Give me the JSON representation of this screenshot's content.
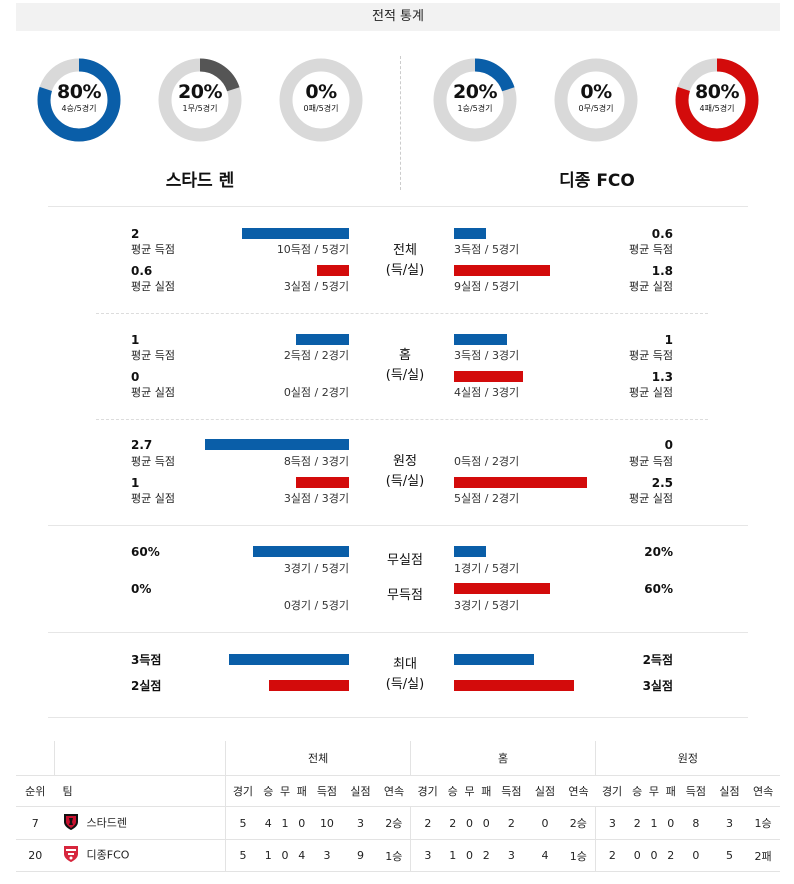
{
  "header": {
    "title": "전적 통계"
  },
  "teams": {
    "left": {
      "name": "스타드 렌",
      "donuts": [
        {
          "pct": "80%",
          "sub": "4승/5경기",
          "fraction": 0.8,
          "color": "#0a5ea8"
        },
        {
          "pct": "20%",
          "sub": "1무/5경기",
          "fraction": 0.2,
          "color": "#555555"
        },
        {
          "pct": "0%",
          "sub": "0패/5경기",
          "fraction": 0,
          "color": "#d30b0b"
        }
      ]
    },
    "right": {
      "name": "디종 FCO",
      "donuts": [
        {
          "pct": "20%",
          "sub": "1승/5경기",
          "fraction": 0.2,
          "color": "#0a5ea8"
        },
        {
          "pct": "0%",
          "sub": "0무/5경기",
          "fraction": 0,
          "color": "#555555"
        },
        {
          "pct": "80%",
          "sub": "4패/5경기",
          "fraction": 0.8,
          "color": "#d30b0b"
        }
      ]
    }
  },
  "sections": {
    "total": {
      "label1": "전체",
      "label2": "(득/실)",
      "left": {
        "gf": "2",
        "gf_label": "평균 득점",
        "gf_cap": "10득점 / 5경기",
        "ga": "0.6",
        "ga_label": "평균 실점",
        "ga_cap": "3실점 / 5경기"
      },
      "right": {
        "gf": "0.6",
        "gf_label": "평균 득점",
        "gf_cap": "3득점 / 5경기",
        "ga": "1.8",
        "ga_label": "평균 실점",
        "ga_cap": "9실점 / 5경기"
      }
    },
    "home": {
      "label1": "홈",
      "label2": "(득/실)",
      "left": {
        "gf": "1",
        "gf_label": "평균 득점",
        "gf_cap": "2득점 / 2경기",
        "ga": "0",
        "ga_label": "평균 실점",
        "ga_cap": "0실점 / 2경기"
      },
      "right": {
        "gf": "1",
        "gf_label": "평균 득점",
        "gf_cap": "3득점 / 3경기",
        "ga": "1.3",
        "ga_label": "평균 실점",
        "ga_cap": "4실점 / 3경기"
      }
    },
    "away": {
      "label1": "원정",
      "label2": "(득/실)",
      "left": {
        "gf": "2.7",
        "gf_label": "평균 득점",
        "gf_cap": "8득점 / 3경기",
        "ga": "1",
        "ga_label": "평균 실점",
        "ga_cap": "3실점 / 3경기"
      },
      "right": {
        "gf": "0",
        "gf_label": "평균 득점",
        "gf_cap": "0득점 / 2경기",
        "ga": "2.5",
        "ga_label": "평균 실점",
        "ga_cap": "5실점 / 2경기"
      }
    },
    "cleansheet": {
      "cs_label": "무실점",
      "fts_label": "무득점",
      "left": {
        "cs": "60%",
        "cs_cap": "3경기 / 5경기",
        "fts": "0%",
        "fts_cap": "0경기 / 5경기"
      },
      "right": {
        "cs": "20%",
        "cs_cap": "1경기 / 5경기",
        "fts": "60%",
        "fts_cap": "3경기 / 5경기"
      }
    },
    "max": {
      "label1": "최대",
      "label2": "(득/실)",
      "left": {
        "gf": "3득점",
        "ga": "2실점"
      },
      "right": {
        "gf": "2득점",
        "ga": "3실점"
      }
    }
  },
  "colors": {
    "blue": "#0a5ea8",
    "red": "#d30b0b",
    "gray_ring": "#d9d9d9"
  },
  "standings": {
    "headers": {
      "rank": "순위",
      "team": "팀",
      "total": "전체",
      "home": "홈",
      "away": "원정"
    },
    "subheaders": [
      "경기",
      "승",
      "무",
      "패",
      "득점",
      "실점",
      "연속"
    ],
    "rows": [
      {
        "rank": "7",
        "team": "스타드렌",
        "logo": "rennes-logo",
        "total": [
          "5",
          "4",
          "1",
          "0",
          "10",
          "3",
          "2승"
        ],
        "home": [
          "2",
          "2",
          "0",
          "0",
          "2",
          "0",
          "2승"
        ],
        "away": [
          "3",
          "2",
          "1",
          "0",
          "8",
          "3",
          "1승"
        ]
      },
      {
        "rank": "20",
        "team": "디종FCO",
        "logo": "dijon-logo",
        "total": [
          "5",
          "1",
          "0",
          "4",
          "3",
          "9",
          "1승"
        ],
        "home": [
          "3",
          "1",
          "0",
          "2",
          "3",
          "4",
          "1승"
        ],
        "away": [
          "2",
          "0",
          "0",
          "2",
          "0",
          "5",
          "2패"
        ]
      }
    ]
  }
}
